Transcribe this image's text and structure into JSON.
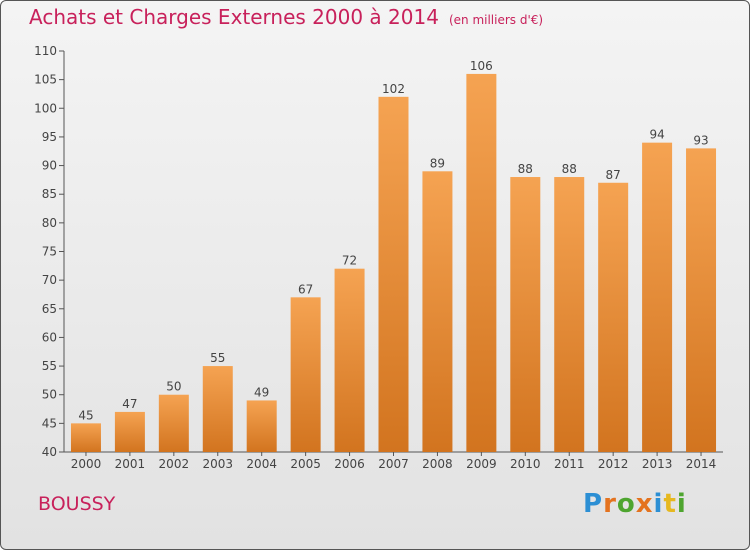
{
  "chart_data": {
    "type": "bar",
    "title": "Achats et Charges Externes 2000 à 2014",
    "subtitle": "(en milliers d'€)",
    "categories": [
      "2000",
      "2001",
      "2002",
      "2003",
      "2004",
      "2005",
      "2006",
      "2007",
      "2008",
      "2009",
      "2010",
      "2011",
      "2012",
      "2013",
      "2014"
    ],
    "values": [
      45,
      47,
      50,
      55,
      49,
      67,
      72,
      102,
      89,
      106,
      88,
      88,
      87,
      94,
      93
    ],
    "ylim": [
      40,
      110
    ],
    "yticks": [
      40,
      45,
      50,
      55,
      60,
      65,
      70,
      75,
      80,
      85,
      90,
      95,
      100,
      105,
      110
    ],
    "grid": false,
    "data_labels": true,
    "bar_color_top": "#f5a352",
    "bar_color_bottom": "#d2741f"
  },
  "location": "BOUSSY",
  "logo": {
    "letters": [
      "P",
      "r",
      "o",
      "x",
      "i",
      "t",
      "i"
    ]
  },
  "colors": {
    "title": "#c8215b",
    "axis": "#555555"
  }
}
